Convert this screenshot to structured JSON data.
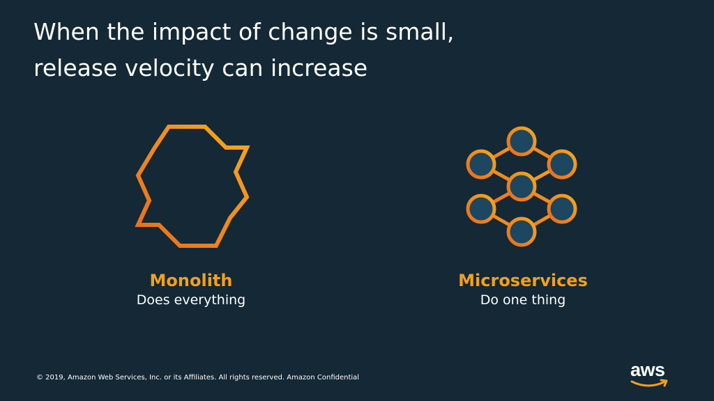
{
  "slide": {
    "title_lines": [
      "When the impact of change is small,",
      "release velocity can increase"
    ]
  },
  "monolith": {
    "name": "Monolith",
    "description": "Does everything",
    "icon": "monolith-hexagon-icon"
  },
  "microservices": {
    "name": "Microservices",
    "description": "Do one thing",
    "icon": "microservices-network-icon"
  },
  "footer": {
    "copyright": "© 2019, Amazon Web Services, Inc. or its Affiliates. All rights reserved. Amazon Confidential"
  },
  "logo": {
    "text": "aws",
    "icon": "aws-logo-icon"
  },
  "colors": {
    "background": "#142835",
    "accent": "#f2a01d",
    "node_fill": "#1d4660",
    "text": "#ffffff"
  }
}
